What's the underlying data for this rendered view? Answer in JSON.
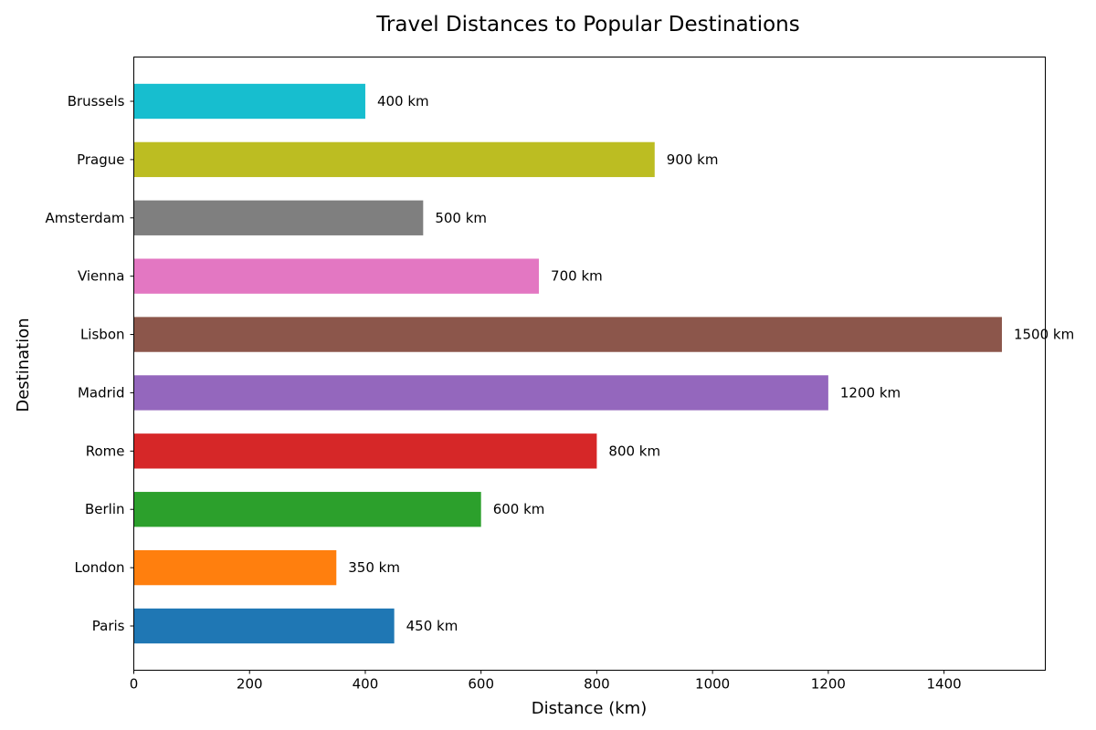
{
  "chart_data": {
    "type": "bar",
    "orientation": "horizontal",
    "title": "Travel Distances to Popular Destinations",
    "xlabel": "Distance (km)",
    "ylabel": "Destination",
    "categories": [
      "Paris",
      "London",
      "Berlin",
      "Rome",
      "Madrid",
      "Lisbon",
      "Vienna",
      "Amsterdam",
      "Prague",
      "Brussels"
    ],
    "values": [
      450,
      350,
      600,
      800,
      1200,
      1500,
      700,
      500,
      900,
      400
    ],
    "value_labels": [
      "450 km",
      "350 km",
      "600 km",
      "800 km",
      "1200 km",
      "1500 km",
      "700 km",
      "500 km",
      "900 km",
      "400 km"
    ],
    "colors": [
      "#1f77b4",
      "#ff7f0e",
      "#2ca02c",
      "#d62728",
      "#9467bd",
      "#8c564b",
      "#e377c2",
      "#7f7f7f",
      "#bcbd22",
      "#17becf"
    ],
    "xlim": [
      0,
      1575
    ],
    "xticks": [
      0,
      200,
      400,
      600,
      800,
      1000,
      1200,
      1400
    ],
    "grid": false,
    "legend": "none"
  }
}
